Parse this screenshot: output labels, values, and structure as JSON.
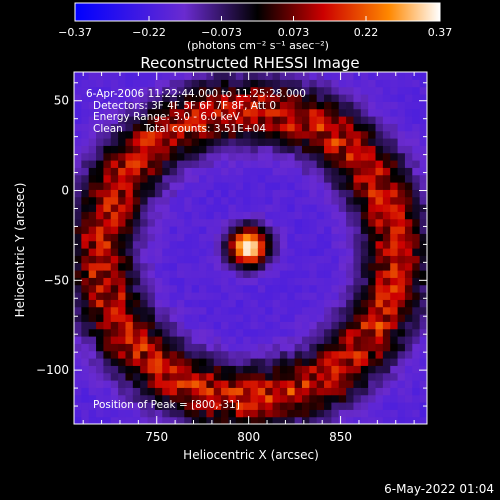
{
  "chart_data": {
    "type": "heatmap",
    "title": "Reconstructed RHESSI Image",
    "xlabel": "Heliocentric X (arcsec)",
    "ylabel": "Heliocentric Y (arcsec)",
    "xlim": [
      705,
      897
    ],
    "ylim": [
      -130,
      66
    ],
    "xticks": [
      750,
      800,
      850
    ],
    "yticks": [
      -100,
      -50,
      0,
      50
    ],
    "colorbar": {
      "min": -0.37,
      "max": 0.37,
      "ticks": [
        "-0.37",
        "-0.22",
        "-0.073",
        "0.073",
        "0.22",
        "0.37"
      ],
      "unit_label": "(photons cm⁻² s⁻¹ asec⁻²)",
      "colormap": "blue-purple-black-red-orange-yellow-white"
    },
    "annotations": [
      "6-Apr-2006 11:22:44.000 to 11:25:28.000",
      "Detectors: 3F 4F 5F 6F 7F 8F, Att 0",
      "Energy Range: 3.0 - 6.0 keV",
      "Clean",
      "Total counts: 3.51E+04"
    ],
    "peak_label": "Position of Peak = [800,-31]",
    "peak": {
      "x": 800,
      "y": -31,
      "value": 0.37
    },
    "ring": {
      "center_x": 800,
      "center_y": -35,
      "radius": 80,
      "value": 0.13
    },
    "footer_date": "6-May-2022 01:04"
  }
}
